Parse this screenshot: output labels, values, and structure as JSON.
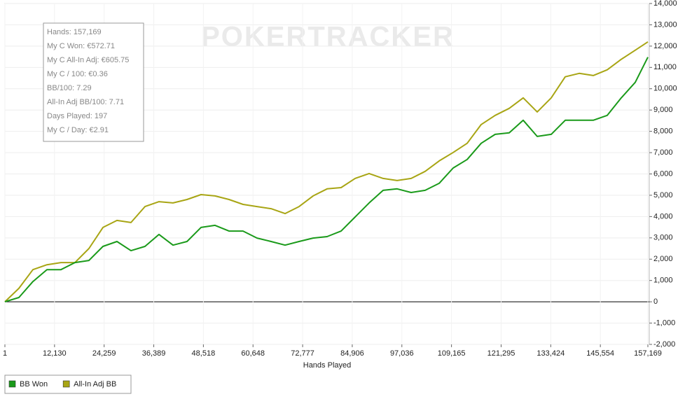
{
  "chart_data": {
    "type": "line",
    "watermark": "POKERTRACKER",
    "info_box": [
      "Hands: 157,169",
      "My C Won: €572.71",
      "My C All-In Adj: €605.75",
      "My C / 100: €0.36",
      "BB/100: 7.29",
      "All-In Adj BB/100: 7.71",
      "Days Played: 197",
      "My C / Day: €2.91"
    ],
    "x_label": "Hands Played",
    "x": [
      1,
      3425,
      6849,
      10273,
      13697,
      17121,
      20545,
      23969,
      27393,
      30817,
      34241,
      37665,
      41089,
      44513,
      47937,
      51361,
      54785,
      58209,
      61633,
      65057,
      68481,
      71905,
      75329,
      78753,
      82177,
      85601,
      89025,
      92449,
      95873,
      99297,
      102721,
      106145,
      109569,
      112993,
      116417,
      119841,
      123265,
      126689,
      130113,
      133537,
      136961,
      140385,
      143809,
      147233,
      150657,
      154081,
      157169
    ],
    "series": [
      {
        "name": "BB Won",
        "color": "#1a9a1a",
        "values": [
          0,
          200,
          950,
          1510,
          1510,
          1840,
          1940,
          2600,
          2830,
          2400,
          2600,
          3160,
          2660,
          2830,
          3490,
          3590,
          3320,
          3320,
          2990,
          2830,
          2660,
          2830,
          2990,
          3060,
          3320,
          3980,
          4640,
          5230,
          5300,
          5130,
          5230,
          5560,
          6280,
          6680,
          7440,
          7860,
          7930,
          8520,
          7760,
          7860,
          8520,
          8520,
          8520,
          8750,
          9570,
          10300,
          11480
        ]
      },
      {
        "name": "All-In Adj BB",
        "color": "#a8a514",
        "values": [
          0,
          630,
          1510,
          1740,
          1840,
          1840,
          2500,
          3490,
          3820,
          3720,
          4470,
          4700,
          4640,
          4800,
          5030,
          4970,
          4800,
          4570,
          4470,
          4370,
          4140,
          4470,
          4970,
          5300,
          5360,
          5790,
          6020,
          5790,
          5690,
          5790,
          6120,
          6610,
          7010,
          7440,
          8320,
          8750,
          9080,
          9570,
          8910,
          9570,
          10560,
          10720,
          10620,
          10890,
          11380,
          11810,
          12200
        ]
      }
    ],
    "xlim": [
      1,
      157169
    ],
    "xticks": [
      1,
      {
        "value": 12130,
        "label": "12,130"
      },
      {
        "value": 24259,
        "label": "24,259"
      },
      {
        "value": 36389,
        "label": "36,389"
      },
      {
        "value": 48518,
        "label": "48,518"
      },
      {
        "value": 60648,
        "label": "60,648"
      },
      {
        "value": 72777,
        "label": "72,777"
      },
      {
        "value": 84906,
        "label": "84,906"
      },
      {
        "value": 97036,
        "label": "97,036"
      },
      {
        "value": 109165,
        "label": "109,165"
      },
      {
        "value": 121295,
        "label": "121,295"
      },
      {
        "value": 133424,
        "label": "133,424"
      },
      {
        "value": 145554,
        "label": "145,554"
      },
      {
        "value": 157169,
        "label": "157,169"
      }
    ],
    "ylim": [
      -2000,
      14000
    ],
    "yticks": [
      {
        "value": -2000,
        "label": "-2,000"
      },
      {
        "value": -1000,
        "label": "-1,000"
      },
      0,
      {
        "value": 1000,
        "label": "1,000"
      },
      {
        "value": 2000,
        "label": "2,000"
      },
      {
        "value": 3000,
        "label": "3,000"
      },
      {
        "value": 4000,
        "label": "4,000"
      },
      {
        "value": 5000,
        "label": "5,000"
      },
      {
        "value": 6000,
        "label": "6,000"
      },
      {
        "value": 7000,
        "label": "7,000"
      },
      {
        "value": 8000,
        "label": "8,000"
      },
      {
        "value": 9000,
        "label": "9,000"
      },
      {
        "value": 10000,
        "label": "10,000"
      },
      {
        "value": 11000,
        "label": "11,000"
      },
      {
        "value": 12000,
        "label": "12,000"
      },
      {
        "value": 13000,
        "label": "13,000"
      },
      {
        "value": 14000,
        "label": "14,000"
      }
    ],
    "grid": true,
    "legend": "bottom-left"
  }
}
